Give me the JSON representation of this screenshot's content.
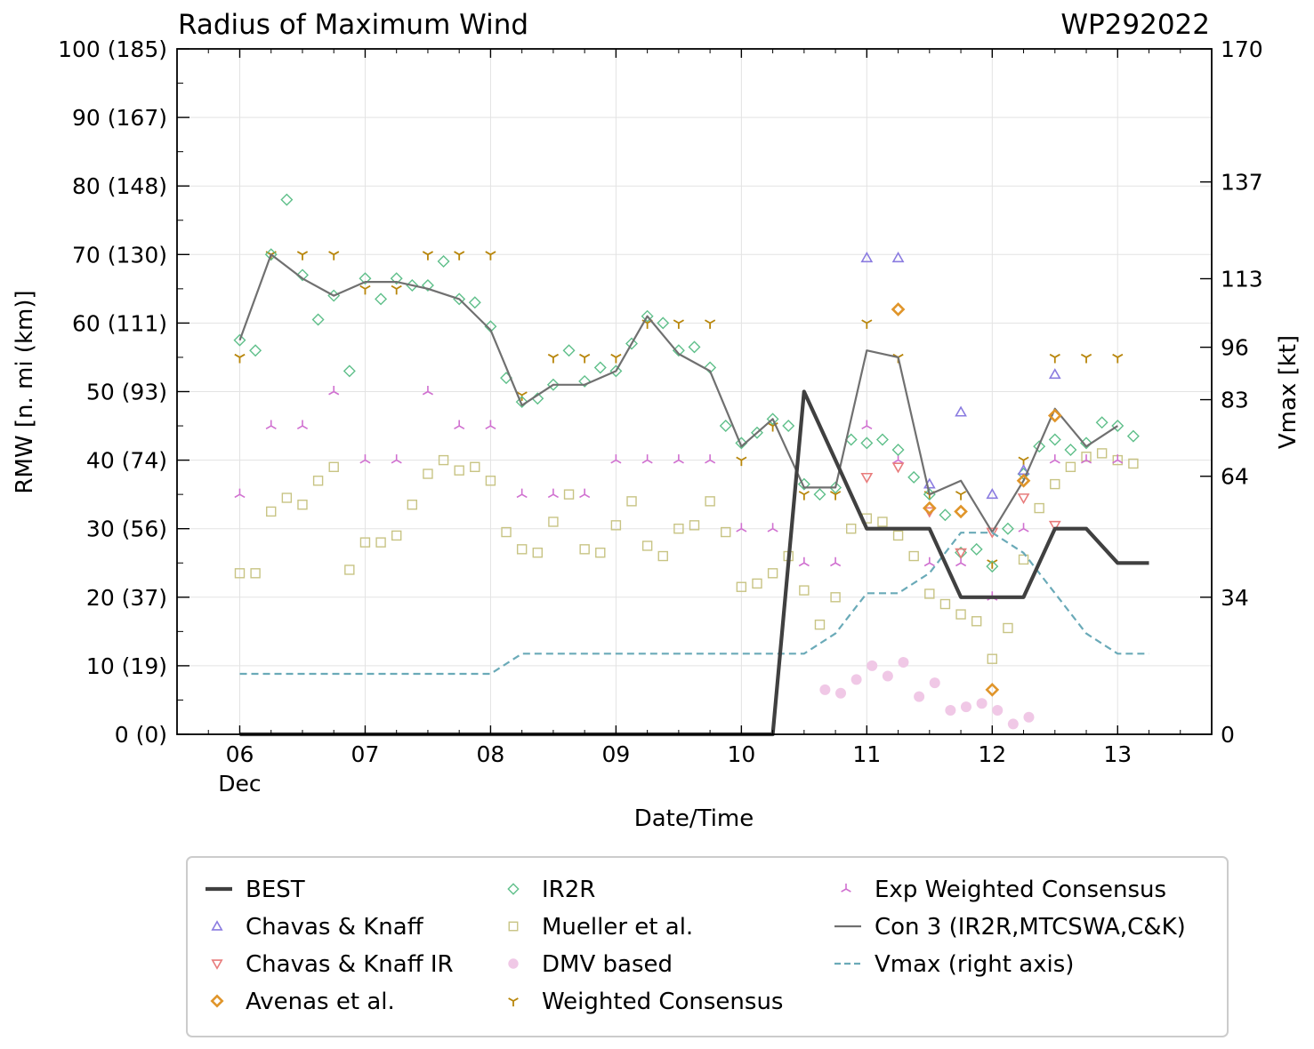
{
  "chart_data": {
    "type": "scatter",
    "title": "Radius of Maximum Wind",
    "storm_id": "WP292022",
    "xlabel": "Date/Time",
    "ylabel": "RMW [n. mi (km)]",
    "y2label": "Vmax [kt]",
    "xlim": [
      -0.5,
      7.75
    ],
    "ylim": [
      0,
      100
    ],
    "x_units": "days since 06 Dec 00Z",
    "x_ticks": [
      0,
      1,
      2,
      3,
      4,
      5,
      6,
      7
    ],
    "x_tick_labels": [
      "06",
      "07",
      "08",
      "09",
      "10",
      "11",
      "12",
      "13"
    ],
    "x_month_label": "Dec",
    "y_ticks": [
      0,
      10,
      20,
      30,
      40,
      50,
      60,
      70,
      80,
      90,
      100
    ],
    "y_tick_labels": [
      "0 (0)",
      "10 (19)",
      "20 (37)",
      "30 (56)",
      "40 (74)",
      "50 (93)",
      "60 (111)",
      "70 (130)",
      "80 (148)",
      "90 (167)",
      "100 (185)"
    ],
    "y2_ticks": [
      0,
      34,
      64,
      83,
      96,
      113,
      137,
      170
    ],
    "y2_tick_labels": [
      "0",
      "34",
      "64",
      "83",
      "96",
      "113",
      "137",
      "170"
    ],
    "y2lim": [
      0,
      170
    ],
    "grid": true,
    "legend_position": "bottom",
    "series": [
      {
        "name": "BEST",
        "marker": "line-thick",
        "color": "#404040",
        "x": [
          0,
          0.25,
          0.5,
          0.75,
          1,
          1.25,
          1.5,
          1.75,
          2,
          2.25,
          2.5,
          2.75,
          3,
          3.25,
          3.5,
          3.75,
          4,
          4.25,
          4.5,
          4.75,
          5,
          5.25,
          5.5,
          5.75,
          6,
          6.25,
          6.5,
          6.75,
          7,
          7.25
        ],
        "y": [
          0,
          0,
          0,
          0,
          0,
          0,
          0,
          0,
          0,
          0,
          0,
          0,
          0,
          0,
          0,
          0,
          0,
          0,
          50,
          40,
          30,
          30,
          30,
          20,
          20,
          20,
          30,
          30,
          25,
          25
        ]
      },
      {
        "name": "Chavas & Knaff",
        "marker": "triangle-up",
        "color": "#8a7be0",
        "x": [
          5,
          5.25,
          5.5,
          5.75,
          6,
          6.25,
          6.5
        ],
        "y": [
          69.5,
          69.5,
          36.5,
          47,
          35,
          38.5,
          52.5
        ]
      },
      {
        "name": "Chavas & Knaff IR",
        "marker": "triangle-down",
        "color": "#e87c7c",
        "x": [
          5,
          5.25,
          5.5,
          5.75,
          6,
          6.25,
          6.5
        ],
        "y": [
          37.5,
          39,
          32.5,
          26.5,
          29.5,
          34.5,
          30.5
        ]
      },
      {
        "name": "Avenas et al.",
        "marker": "diamond-thick",
        "color": "#e0952a",
        "x": [
          5.25,
          5.5,
          5.75,
          6,
          6.25,
          6.5
        ],
        "y": [
          62,
          33,
          32.5,
          6.5,
          37,
          46.5
        ]
      },
      {
        "name": "IR2R",
        "marker": "diamond",
        "color": "#5fbf8a",
        "x": [
          0,
          0.125,
          0.25,
          0.375,
          0.5,
          0.625,
          0.75,
          0.875,
          1,
          1.125,
          1.25,
          1.375,
          1.5,
          1.625,
          1.75,
          1.875,
          2,
          2.125,
          2.25,
          2.375,
          2.5,
          2.625,
          2.75,
          2.875,
          3,
          3.125,
          3.25,
          3.375,
          3.5,
          3.625,
          3.75,
          3.875,
          4,
          4.125,
          4.25,
          4.375,
          4.5,
          4.625,
          4.75,
          4.875,
          5,
          5.125,
          5.25,
          5.375,
          5.5,
          5.625,
          5.75,
          5.875,
          6,
          6.125,
          6.25,
          6.375,
          6.5,
          6.625,
          6.75,
          6.875,
          7,
          7.125
        ],
        "y": [
          57.5,
          56,
          70,
          78,
          67,
          60.5,
          64,
          53,
          66.5,
          63.5,
          66.5,
          65.5,
          65.5,
          69,
          63.5,
          63,
          59.5,
          52,
          48.5,
          49,
          51,
          56,
          51.5,
          53.5,
          53,
          57,
          61,
          60,
          56,
          56.5,
          53.5,
          45,
          42.5,
          44,
          46,
          45,
          36.5,
          35,
          36,
          43,
          42.5,
          43,
          41.5,
          37.5,
          35,
          32,
          26.5,
          27,
          24.5,
          30,
          38,
          42,
          43,
          41.5,
          42.5,
          45.5,
          45,
          43.5
        ]
      },
      {
        "name": "Mueller et al.",
        "marker": "square",
        "color": "#c8c484",
        "x": [
          0,
          0.125,
          0.25,
          0.375,
          0.5,
          0.625,
          0.75,
          0.875,
          1,
          1.125,
          1.25,
          1.375,
          1.5,
          1.625,
          1.75,
          1.875,
          2,
          2.125,
          2.25,
          2.375,
          2.5,
          2.625,
          2.75,
          2.875,
          3,
          3.125,
          3.25,
          3.375,
          3.5,
          3.625,
          3.75,
          3.875,
          4,
          4.125,
          4.25,
          4.375,
          4.5,
          4.625,
          4.75,
          4.875,
          5,
          5.125,
          5.25,
          5.375,
          5.5,
          5.625,
          5.75,
          5.875,
          6,
          6.125,
          6.25,
          6.375,
          6.5,
          6.625,
          6.75,
          6.875,
          7,
          7.125
        ],
        "y": [
          23.5,
          23.5,
          32.5,
          34.5,
          33.5,
          37,
          39,
          24,
          28,
          28,
          29,
          33.5,
          38,
          40,
          38.5,
          39,
          37,
          29.5,
          27,
          26.5,
          31,
          35,
          27,
          26.5,
          30.5,
          34,
          27.5,
          26,
          30,
          30.5,
          34,
          29.5,
          21.5,
          22,
          23.5,
          26,
          21,
          16,
          20,
          30,
          31.5,
          31,
          29,
          26,
          20.5,
          19,
          17.5,
          16.5,
          11,
          15.5,
          25.5,
          33,
          36.5,
          39,
          40.5,
          41,
          40,
          39.5
        ]
      },
      {
        "name": "DMV based",
        "marker": "dot",
        "color": "#f0c8e6",
        "x": [
          4.667,
          4.792,
          4.917,
          5.042,
          5.167,
          5.292,
          5.417,
          5.542,
          5.667,
          5.792,
          5.917,
          6.042,
          6.167,
          6.292
        ],
        "y": [
          6.5,
          6,
          8,
          10,
          8.5,
          10.5,
          5.5,
          7.5,
          3.5,
          4,
          4.5,
          3.5,
          1.5,
          2.5
        ]
      },
      {
        "name": "Weighted Consensus",
        "marker": "tri-down",
        "color": "#b8860b",
        "x": [
          0,
          0.25,
          0.5,
          0.75,
          1,
          1.25,
          1.5,
          1.75,
          2,
          2.25,
          2.5,
          2.75,
          3,
          3.25,
          3.5,
          3.75,
          4,
          4.25,
          4.5,
          4.75,
          5,
          5.25,
          5.5,
          5.75,
          6,
          6.25,
          6.5,
          6.75,
          7
        ],
        "y": [
          55,
          70,
          70,
          70,
          65,
          65,
          70,
          70,
          70,
          49.5,
          55,
          55,
          55,
          60,
          60,
          60,
          40,
          45,
          35,
          35,
          60,
          55,
          35,
          35,
          25,
          40,
          55,
          55,
          55
        ]
      },
      {
        "name": "Exp Weighted Consensus",
        "marker": "tri-up",
        "color": "#d070d0",
        "x": [
          0,
          0.25,
          0.5,
          0.75,
          1,
          1.25,
          1.5,
          1.75,
          2,
          2.25,
          2.5,
          2.75,
          3,
          3.25,
          3.5,
          3.75,
          4,
          4.25,
          4.5,
          4.75,
          5,
          5.25,
          5.5,
          5.75,
          6,
          6.25,
          6.5,
          6.75,
          7
        ],
        "y": [
          35,
          45,
          45,
          50,
          40,
          40,
          50,
          45,
          45,
          35,
          35,
          35,
          40,
          40,
          40,
          40,
          30,
          30,
          25,
          25,
          45,
          40,
          25,
          25,
          20,
          30,
          40,
          40,
          40
        ]
      },
      {
        "name": "Con 3 (IR2R,MTCSWA,C&K)",
        "marker": "line-thin",
        "color": "#707070",
        "x": [
          0,
          0.25,
          0.5,
          0.75,
          1,
          1.25,
          1.5,
          1.75,
          2,
          2.25,
          2.5,
          2.75,
          3,
          3.25,
          3.5,
          3.75,
          4,
          4.25,
          4.5,
          4.75,
          5,
          5.25,
          5.5,
          5.75,
          6,
          6.25,
          6.5,
          6.75,
          7
        ],
        "y": [
          57.5,
          70,
          66.5,
          64,
          66,
          66,
          65,
          63.5,
          59,
          48,
          51,
          51,
          53,
          61,
          55.5,
          53,
          42,
          46,
          36,
          36,
          56,
          55,
          35,
          37,
          29.5,
          37,
          47.5,
          42,
          45
        ]
      },
      {
        "name": "Vmax (right axis)",
        "marker": "line-dashed",
        "color": "#6aaab8",
        "axis": "right",
        "x": [
          0,
          1,
          2,
          2.25,
          3,
          4,
          4.5,
          4.75,
          5,
          5.25,
          5.5,
          5.75,
          6,
          6.25,
          6.5,
          6.75,
          7,
          7.25
        ],
        "y": [
          15,
          15,
          15,
          20,
          20,
          20,
          20,
          25,
          35,
          35,
          40,
          50,
          50,
          45,
          35,
          25,
          20,
          20
        ]
      }
    ]
  }
}
